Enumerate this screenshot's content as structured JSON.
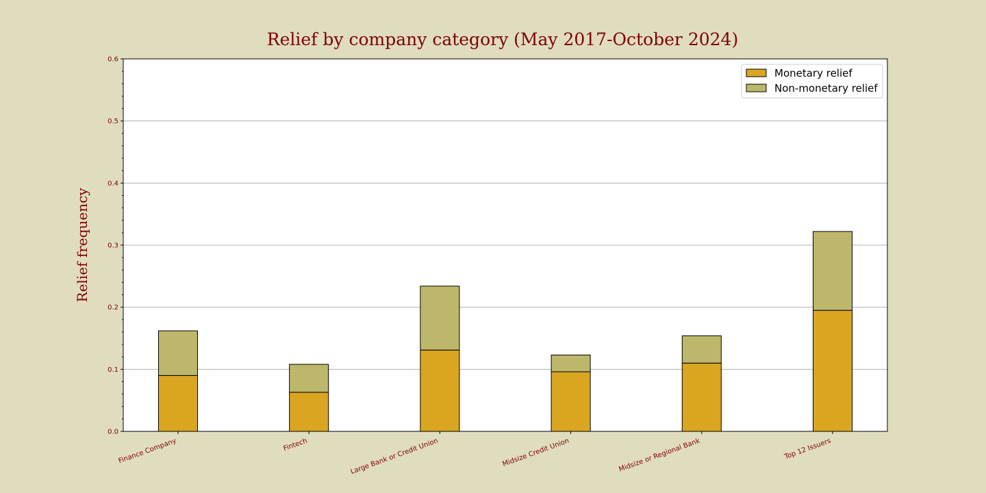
{
  "chart_data": {
    "type": "bar",
    "stacked": true,
    "title": "Relief by company category (May 2017-October 2024)",
    "xlabel": "",
    "ylabel": "Relief frequency",
    "categories": [
      "Finance Company",
      "Fintech",
      "Large Bank or Credit Union",
      "Midsize Credit Union",
      "Midsize or Regional Bank",
      "Top 12 Issuers"
    ],
    "series": [
      {
        "name": "Monetary relief",
        "color": "#daa520",
        "values": [
          0.09,
          0.063,
          0.131,
          0.096,
          0.11,
          0.195
        ]
      },
      {
        "name": "Non-monetary relief",
        "color": "#bdb76b",
        "values": [
          0.072,
          0.045,
          0.103,
          0.027,
          0.044,
          0.127
        ]
      }
    ],
    "ylim": [
      0,
      0.6
    ],
    "yticks": [
      "0.0",
      "0.1",
      "0.2",
      "0.3",
      "0.4",
      "0.5",
      "0.6"
    ],
    "grid": "y",
    "legend_position": "top-right",
    "colors": {
      "background": "#e0ddbf",
      "plot_background": "#ffffff",
      "text": "#800000",
      "grid": "#b0b0b0",
      "edge": "#000000"
    }
  }
}
